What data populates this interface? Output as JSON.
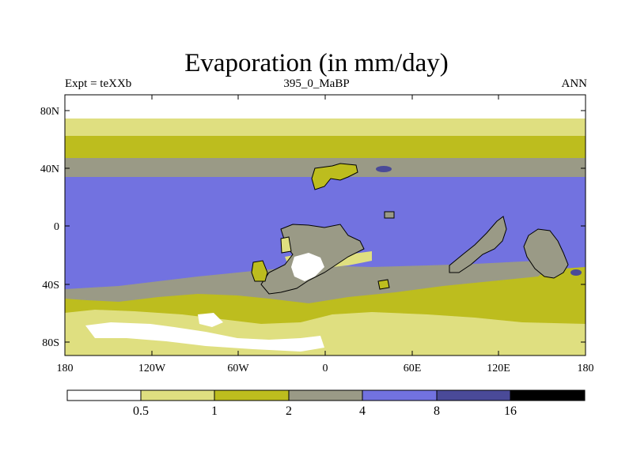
{
  "title": "Evaporation (in mm/day)",
  "subtitle_left": "Expt = teXXb",
  "subtitle_center": "395_0_MaBP",
  "subtitle_right": "ANN",
  "lat_labels": [
    "80N",
    "40N",
    "0",
    "40S",
    "80S"
  ],
  "lon_labels": [
    "180",
    "120W",
    "60W",
    "0",
    "60E",
    "120E",
    "180"
  ],
  "legend": {
    "colors": [
      "#ffffff",
      "#dfdf80",
      "#bdbd1e",
      "#9a9a86",
      "#7272e0",
      "#4a4a98",
      "#000000"
    ],
    "labels": [
      "0.5",
      "1",
      "2",
      "4",
      "8",
      "16"
    ]
  },
  "colors": {
    "white": "#ffffff",
    "pale": "#dfdf80",
    "olive": "#bdbd1e",
    "gray": "#9a9a86",
    "blue": "#7272e0",
    "dark": "#4a4a98"
  }
}
